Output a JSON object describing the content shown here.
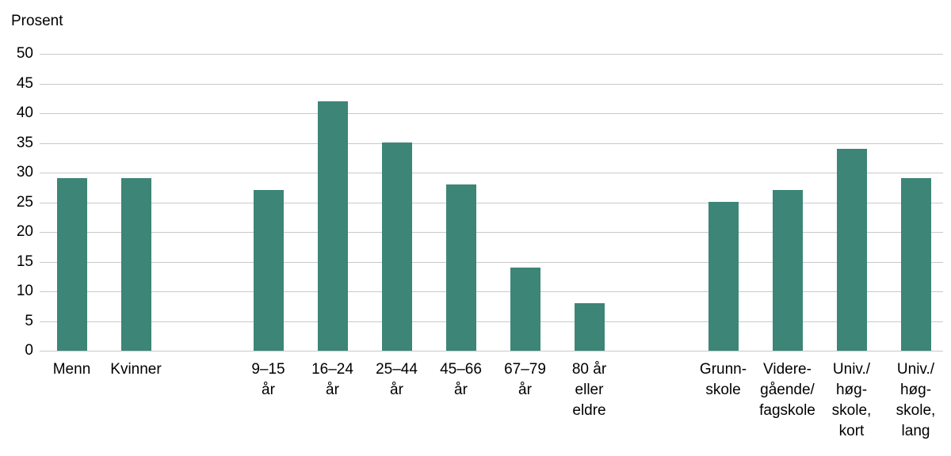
{
  "chart_data": {
    "type": "bar",
    "title": "",
    "ylabel": "Prosent",
    "xlabel": "",
    "ylim": [
      0,
      50
    ],
    "ytick_step": 5,
    "grid": true,
    "legend": "none",
    "bar_color": "#3d8577",
    "gridline_color": "#c9c9c9",
    "groups": [
      {
        "name": "kjonn",
        "categories": [
          "Menn",
          "Kvinner"
        ],
        "values": [
          29,
          29
        ]
      },
      {
        "name": "alder",
        "categories": [
          "9–15\når",
          "16–24\når",
          "25–44\når",
          "45–66\når",
          "67–79\når",
          "80 år\neller\neldre"
        ],
        "values": [
          27,
          42,
          35,
          28,
          14,
          8
        ]
      },
      {
        "name": "utdanning",
        "categories": [
          "Grunn-\nskole",
          "Videre-\ngående/\nfagskole",
          "Univ./\nhøg-\nskole,\nkort",
          "Univ./\nhøg-\nskole,\nlang"
        ],
        "values": [
          25,
          27,
          34,
          29
        ]
      }
    ]
  }
}
